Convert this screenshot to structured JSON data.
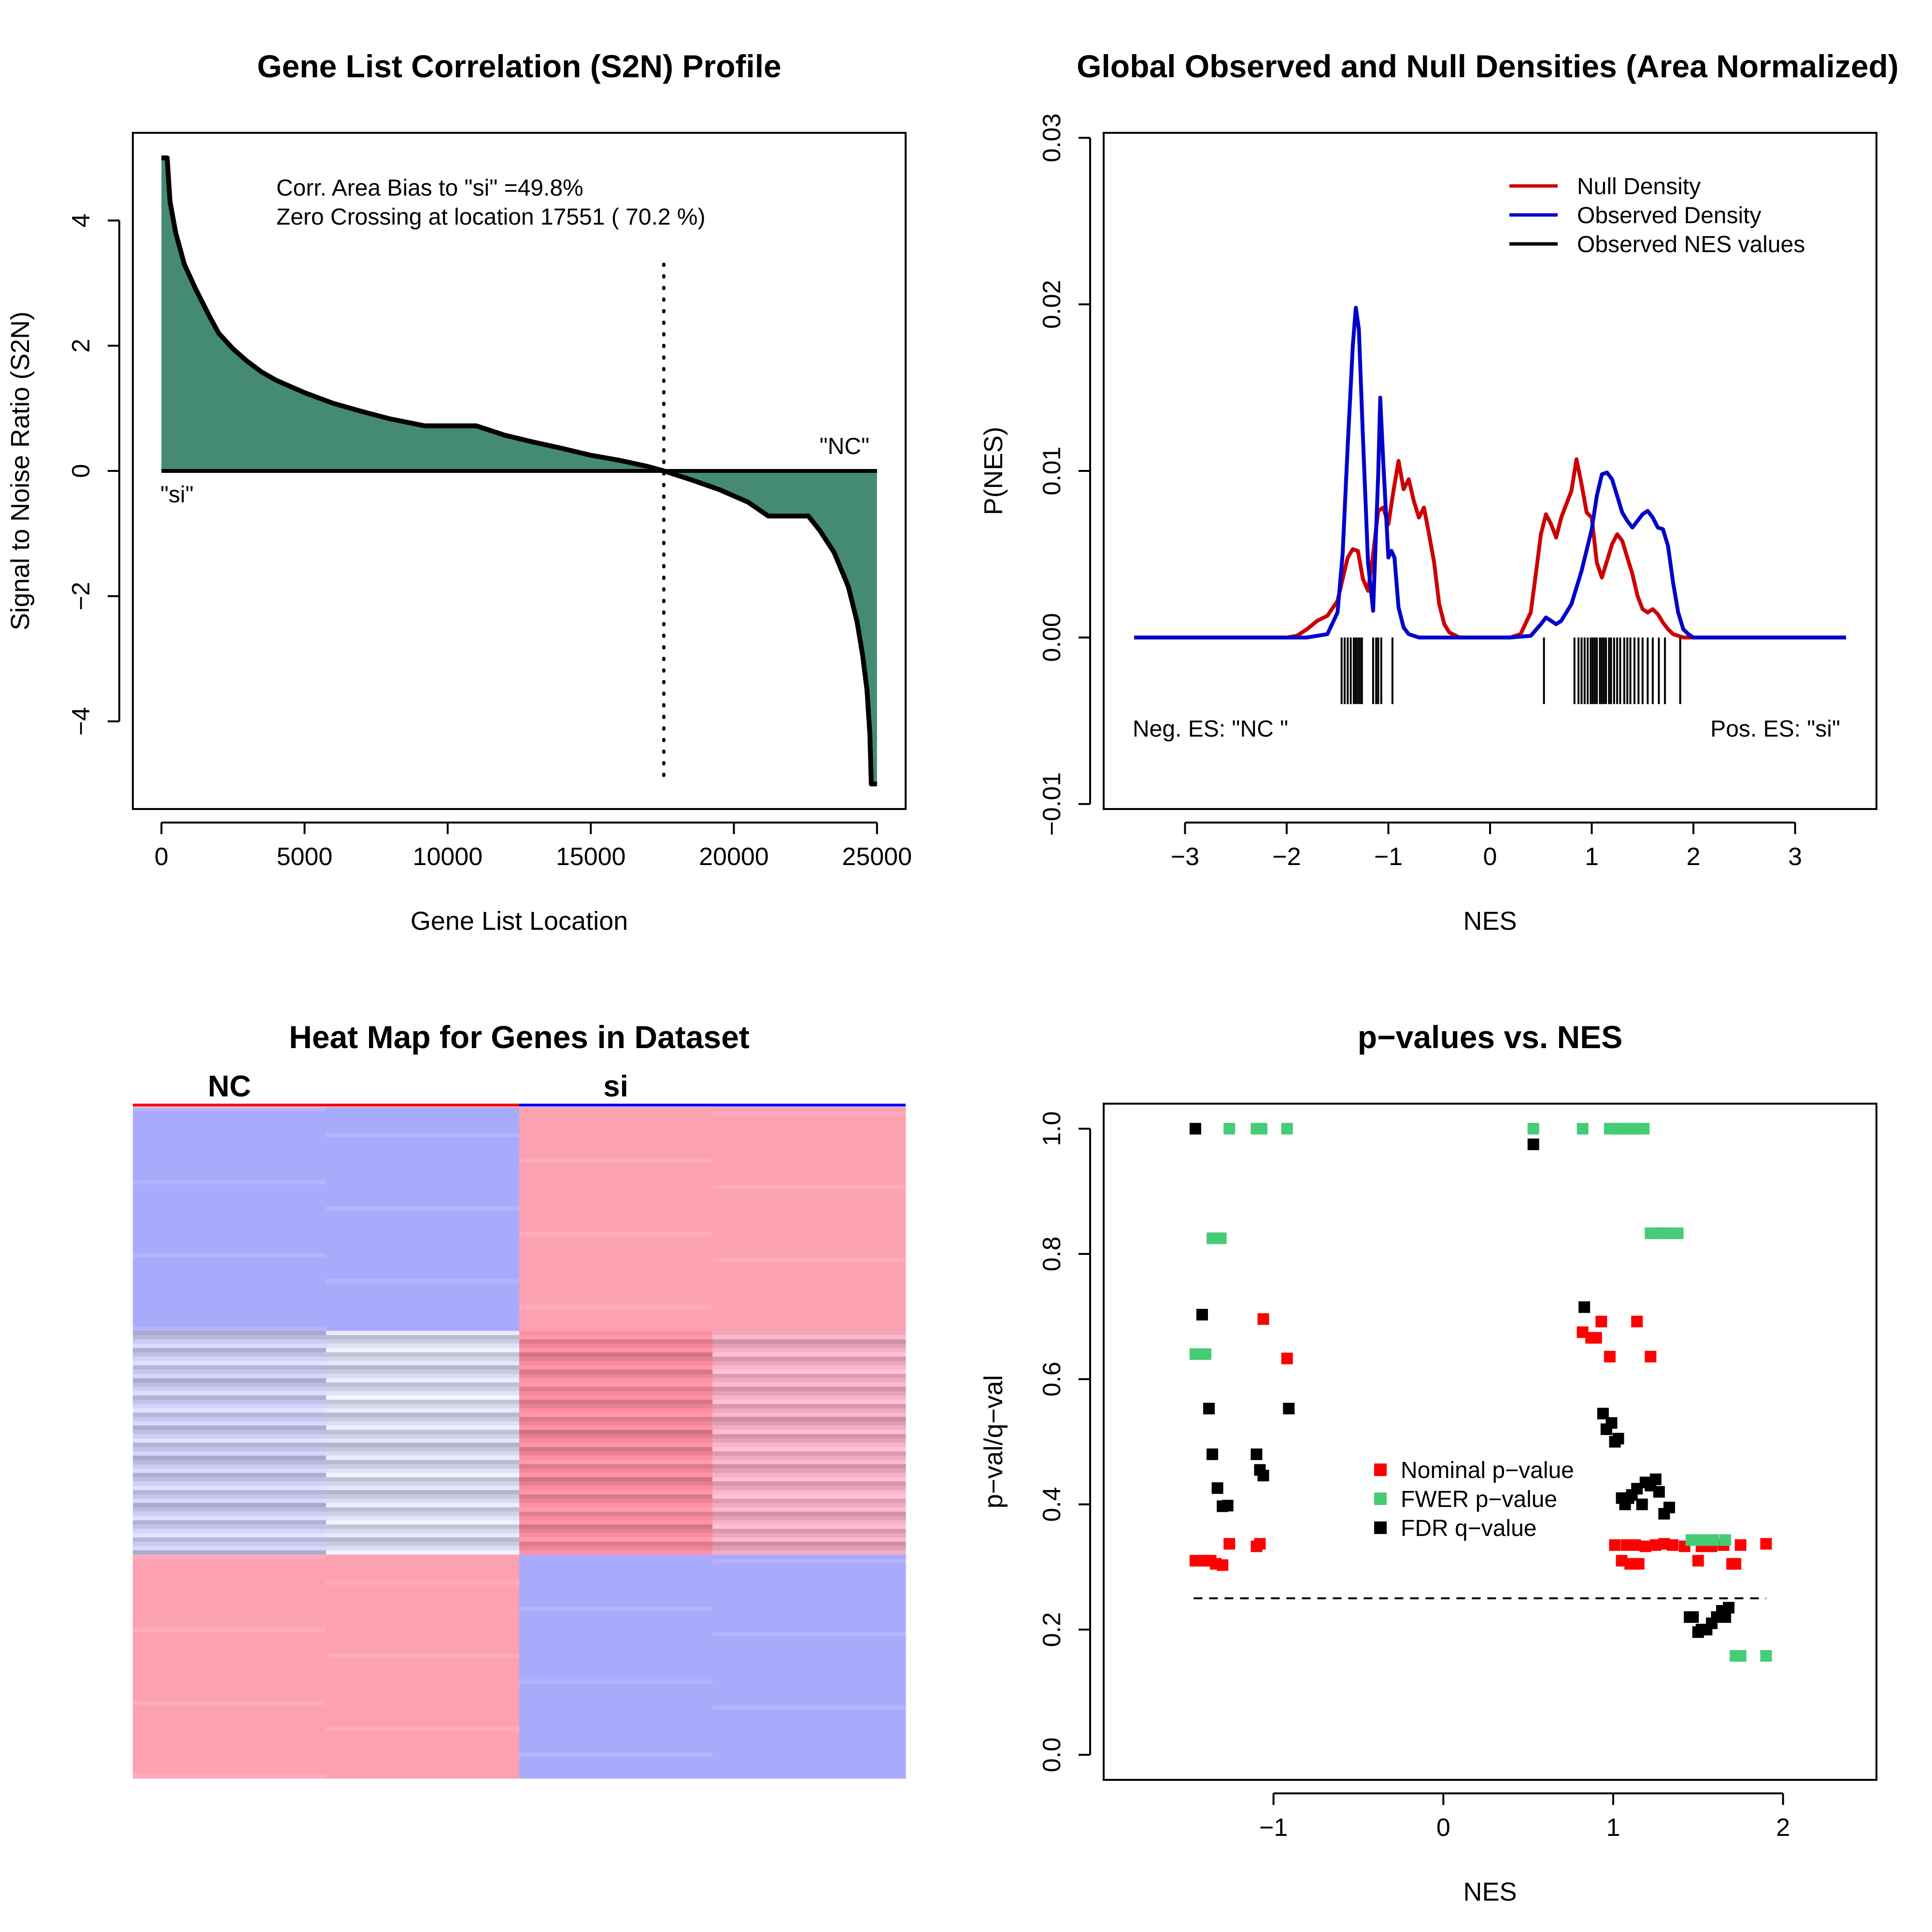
{
  "chart_data": [
    {
      "type": "area",
      "title": "Gene List Correlation (S2N) Profile",
      "xlabel": "Gene List Location",
      "ylabel": "Signal to Noise Ratio (S2N)",
      "xlim": [
        -1000,
        26000
      ],
      "ylim": [
        -5.4,
        5.4
      ],
      "xticks": [
        0,
        5000,
        10000,
        15000,
        20000,
        25000
      ],
      "xtick_labels": [
        "0",
        "5000",
        "10000",
        "15000",
        "20000",
        "25000"
      ],
      "yticks": [
        -4,
        -2,
        0,
        2,
        4
      ],
      "ytick_labels": [
        "−4",
        "−2",
        "0",
        "2",
        "4"
      ],
      "fill_color": "#458b74",
      "x": [
        0,
        200,
        300,
        500,
        800,
        1200,
        1700,
        2000,
        2500,
        3000,
        3500,
        4000,
        5000,
        6000,
        7000,
        8000,
        9200,
        10000,
        11000,
        12000,
        13000,
        14000,
        15000,
        16000,
        17000,
        17551,
        18500,
        19500,
        20500,
        21200,
        22000,
        22600,
        23000,
        23500,
        24000,
        24300,
        24500,
        24650,
        24750,
        24800,
        24850,
        25000
      ],
      "values": [
        5.0,
        5.0,
        4.3,
        3.8,
        3.3,
        2.9,
        2.45,
        2.2,
        1.95,
        1.75,
        1.58,
        1.45,
        1.25,
        1.08,
        0.95,
        0.83,
        0.72,
        0.72,
        0.72,
        0.57,
        0.46,
        0.36,
        0.25,
        0.17,
        0.07,
        0.0,
        -0.14,
        -0.3,
        -0.5,
        -0.72,
        -0.72,
        -0.72,
        -0.95,
        -1.3,
        -1.85,
        -2.4,
        -2.95,
        -3.5,
        -4.2,
        -5.0,
        -5.0,
        -5.0
      ],
      "zero_crossing": 17551,
      "annotations": [
        "Corr. Area Bias to \"si\" =49.8%",
        "Zero Crossing at location  17551  ( 70.2  %)",
        "\"NC\"",
        "\"si\""
      ]
    },
    {
      "type": "line",
      "title": "Global Observed and Null Densities (Area Normalized)",
      "xlabel": "NES",
      "ylabel": "P(NES)",
      "xlim": [
        -3.8,
        3.8
      ],
      "ylim": [
        -0.0103,
        0.0303
      ],
      "xticks": [
        -3,
        -2,
        -1,
        0,
        1,
        2,
        3
      ],
      "xtick_labels": [
        "−3",
        "−2",
        "−1",
        "0",
        "1",
        "2",
        "3"
      ],
      "yticks": [
        -0.01,
        0.0,
        0.01,
        0.02,
        0.03
      ],
      "ytick_labels": [
        "−0.01",
        "0.00",
        "0.01",
        "0.02",
        "0.03"
      ],
      "series": [
        {
          "name": "Null Density",
          "color": "#cc0000",
          "x": [
            -3.5,
            -2.0,
            -1.9,
            -1.8,
            -1.7,
            -1.6,
            -1.5,
            -1.45,
            -1.4,
            -1.35,
            -1.3,
            -1.25,
            -1.2,
            -1.15,
            -1.1,
            -1.05,
            -1.0,
            -0.95,
            -0.9,
            -0.85,
            -0.8,
            -0.75,
            -0.7,
            -0.65,
            -0.6,
            -0.55,
            -0.5,
            -0.45,
            -0.4,
            -0.3,
            0.2,
            0.3,
            0.4,
            0.45,
            0.5,
            0.55,
            0.6,
            0.65,
            0.7,
            0.75,
            0.8,
            0.85,
            0.9,
            0.95,
            1.0,
            1.05,
            1.1,
            1.15,
            1.2,
            1.25,
            1.3,
            1.35,
            1.4,
            1.45,
            1.5,
            1.55,
            1.6,
            1.65,
            1.7,
            1.75,
            1.8,
            1.9,
            3.5
          ],
          "values": [
            0,
            0,
            0.0001,
            0.0005,
            0.001,
            0.0013,
            0.0022,
            0.0035,
            0.0048,
            0.0053,
            0.0052,
            0.0035,
            0.0028,
            0.005,
            0.0076,
            0.0078,
            0.0068,
            0.0088,
            0.0106,
            0.0089,
            0.0095,
            0.0082,
            0.0072,
            0.0078,
            0.0062,
            0.0045,
            0.002,
            0.0008,
            0.0003,
            0,
            0,
            0.0002,
            0.0015,
            0.0038,
            0.0062,
            0.0074,
            0.0068,
            0.006,
            0.0072,
            0.008,
            0.0088,
            0.0107,
            0.0092,
            0.0075,
            0.0072,
            0.0045,
            0.0036,
            0.0046,
            0.0056,
            0.0062,
            0.0058,
            0.0048,
            0.0038,
            0.0025,
            0.0017,
            0.0015,
            0.0017,
            0.0014,
            0.0009,
            0.0005,
            0.0002,
            0,
            0
          ]
        },
        {
          "name": "Observed Density",
          "color": "#0000cc",
          "x": [
            -3.5,
            -1.8,
            -1.6,
            -1.5,
            -1.45,
            -1.4,
            -1.35,
            -1.32,
            -1.29,
            -1.25,
            -1.2,
            -1.15,
            -1.1,
            -1.08,
            -1.05,
            -1.0,
            -0.97,
            -0.94,
            -0.9,
            -0.85,
            -0.8,
            -0.75,
            -0.7,
            -0.6,
            0.2,
            0.4,
            0.5,
            0.55,
            0.6,
            0.65,
            0.7,
            0.8,
            0.9,
            1.0,
            1.05,
            1.1,
            1.15,
            1.2,
            1.25,
            1.3,
            1.35,
            1.4,
            1.45,
            1.5,
            1.55,
            1.6,
            1.65,
            1.7,
            1.75,
            1.8,
            1.85,
            1.9,
            1.95,
            2.0,
            3.5
          ],
          "values": [
            0,
            0,
            0.0002,
            0.0015,
            0.005,
            0.0115,
            0.0175,
            0.0198,
            0.0185,
            0.012,
            0.0045,
            0.0016,
            0.0098,
            0.0144,
            0.0105,
            0.0048,
            0.0052,
            0.0048,
            0.0018,
            0.0006,
            0.0002,
            0.0001,
            0,
            0,
            0,
            0.0001,
            0.0008,
            0.0012,
            0.001,
            0.0008,
            0.001,
            0.002,
            0.004,
            0.0065,
            0.0085,
            0.0098,
            0.0099,
            0.0095,
            0.0085,
            0.0075,
            0.007,
            0.0066,
            0.007,
            0.0074,
            0.0076,
            0.0072,
            0.0066,
            0.0065,
            0.0055,
            0.0033,
            0.0015,
            0.0005,
            0.0002,
            0,
            0
          ]
        }
      ],
      "observed_nes_label": "Observed NES values",
      "observed_nes": [
        -1.46,
        -1.43,
        -1.4,
        -1.37,
        -1.34,
        -1.32,
        -1.3,
        -1.28,
        -1.26,
        -1.15,
        -1.12,
        -1.1,
        -1.07,
        -0.96,
        0.53,
        0.83,
        0.87,
        0.9,
        0.93,
        0.96,
        0.99,
        1.01,
        1.03,
        1.05,
        1.08,
        1.1,
        1.12,
        1.14,
        1.17,
        1.19,
        1.22,
        1.25,
        1.28,
        1.32,
        1.35,
        1.38,
        1.42,
        1.46,
        1.5,
        1.55,
        1.6,
        1.66,
        1.72,
        1.87
      ],
      "annotations": [
        "Neg. ES: \"NC \"",
        "Pos. ES: \"si\""
      ],
      "legend_position": "top-right"
    },
    {
      "type": "heatmap",
      "title": "Heat Map for Genes in Dataset",
      "groups": [
        "NC",
        "si"
      ],
      "group_colors": [
        "#ff0000",
        "#0000ff"
      ],
      "columns": 4,
      "sections": [
        {
          "rows": 52,
          "cols": [
            "#aaaafc",
            "#aaaafc",
            "#fca1b1",
            "#fca1b1"
          ]
        },
        {
          "rows": 52,
          "cols": [
            "#cdcdf6",
            "#dcdcf2",
            "#fc8c9e",
            "#f7b0c6"
          ]
        },
        {
          "rows": 52,
          "cols": [
            "#fca1b1",
            "#fca1b1",
            "#aaaafc",
            "#aaaafc"
          ]
        }
      ]
    },
    {
      "type": "scatter",
      "title": "p−values vs. NES",
      "xlabel": "NES",
      "ylabel": "p−val/q−val",
      "xlim": [
        -2.0,
        2.55
      ],
      "ylim": [
        -0.04,
        1.04
      ],
      "xticks": [
        -1,
        0,
        1,
        2
      ],
      "xtick_labels": [
        "−1",
        "0",
        "1",
        "2"
      ],
      "yticks": [
        0.0,
        0.2,
        0.4,
        0.6,
        0.8,
        1.0
      ],
      "ytick_labels": [
        "0.0",
        "0.2",
        "0.4",
        "0.6",
        "0.8",
        "1.0"
      ],
      "threshold": 0.25,
      "threshold_range": [
        -1.47,
        1.9
      ],
      "series": [
        {
          "name": "Nominal p−value",
          "color": "#ff0000",
          "x": [
            -1.46,
            -1.43,
            -1.4,
            -1.37,
            -1.34,
            -1.3,
            -1.26,
            -1.1,
            -1.08,
            -1.06,
            -0.92,
            0.82,
            0.87,
            0.9,
            0.93,
            0.98,
            1.01,
            1.05,
            1.08,
            1.1,
            1.13,
            1.14,
            1.15,
            1.19,
            1.22,
            1.25,
            1.3,
            1.35,
            1.42,
            1.5,
            1.52,
            1.58,
            1.65,
            1.7,
            1.72,
            1.75,
            1.9
          ],
          "values": [
            0.31,
            0.31,
            0.31,
            0.31,
            0.305,
            0.303,
            0.337,
            0.333,
            0.337,
            0.696,
            0.633,
            0.675,
            0.666,
            0.666,
            0.692,
            0.636,
            0.335,
            0.31,
            0.335,
            0.305,
            0.335,
            0.692,
            0.305,
            0.333,
            0.636,
            0.335,
            0.337,
            0.335,
            0.333,
            0.31,
            0.333,
            0.333,
            0.335,
            0.305,
            0.305,
            0.335,
            0.337
          ]
        },
        {
          "name": "FWER p−value",
          "color": "#44cc77",
          "x": [
            -1.46,
            -1.43,
            -1.4,
            -1.36,
            -1.34,
            -1.31,
            -1.26,
            -1.1,
            -1.07,
            -0.92,
            0.53,
            0.82,
            0.98,
            1.01,
            1.05,
            1.08,
            1.12,
            1.15,
            1.18,
            1.22,
            1.26,
            1.29,
            1.33,
            1.38,
            1.46,
            1.5,
            1.55,
            1.59,
            1.66,
            1.72,
            1.75,
            1.9
          ],
          "values": [
            0.64,
            0.64,
            0.64,
            0.825,
            0.825,
            0.825,
            1.0,
            1.0,
            1.0,
            1.0,
            1.0,
            1.0,
            1.0,
            1.0,
            1.0,
            1.0,
            1.0,
            1.0,
            1.0,
            0.833,
            0.833,
            0.833,
            0.833,
            0.833,
            0.343,
            0.343,
            0.343,
            0.343,
            0.343,
            0.158,
            0.158,
            0.158
          ]
        },
        {
          "name": "FDR q−value",
          "color": "#000000",
          "x": [
            -1.46,
            -1.42,
            -1.38,
            -1.36,
            -1.33,
            -1.3,
            -1.27,
            -1.1,
            -1.08,
            -1.06,
            -0.91,
            0.53,
            0.83,
            0.94,
            0.96,
            0.99,
            1.01,
            1.03,
            1.05,
            1.07,
            1.09,
            1.11,
            1.14,
            1.17,
            1.19,
            1.22,
            1.25,
            1.27,
            1.3,
            1.33,
            1.45,
            1.47,
            1.5,
            1.52,
            1.55,
            1.58,
            1.61,
            1.64,
            1.66,
            1.68
          ],
          "values": [
            1.0,
            0.703,
            0.553,
            0.48,
            0.426,
            0.397,
            0.398,
            0.48,
            0.455,
            0.446,
            0.553,
            0.975,
            0.715,
            0.545,
            0.52,
            0.53,
            0.5,
            0.505,
            0.41,
            0.4,
            0.41,
            0.415,
            0.425,
            0.4,
            0.435,
            0.43,
            0.44,
            0.42,
            0.385,
            0.395,
            0.22,
            0.22,
            0.196,
            0.2,
            0.2,
            0.21,
            0.22,
            0.23,
            0.22,
            0.235
          ]
        }
      ],
      "legend_position": "center"
    }
  ]
}
